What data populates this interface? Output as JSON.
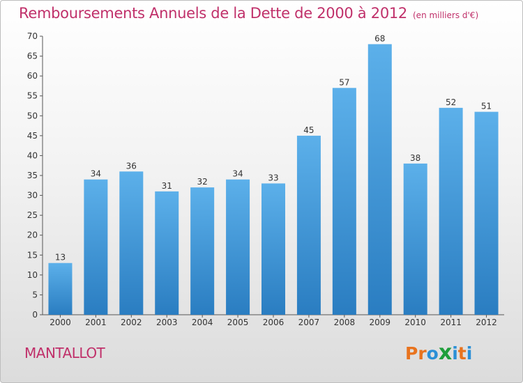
{
  "header": {
    "title": "Remboursements Annuels de la Dette de 2000 à 2012",
    "units": "(en milliers d'€)"
  },
  "footer": {
    "commune": "MANTALLOT",
    "logo_text": "Proxiti"
  },
  "colors": {
    "title": "#c0306a",
    "bar_top": "#5cb0ea",
    "bar_bottom": "#2a7dc1",
    "logo_letters": [
      "#e8731e",
      "#e8731e",
      "#2a8fd6",
      "#1e9e3a",
      "#2a8fd6",
      "#e8731e",
      "#2a8fd6"
    ]
  },
  "chart_data": {
    "type": "bar",
    "title": "Remboursements Annuels de la Dette de 2000 à 2012",
    "subtitle": "(en milliers d'€)",
    "categories": [
      "2000",
      "2001",
      "2002",
      "2003",
      "2004",
      "2005",
      "2006",
      "2007",
      "2008",
      "2009",
      "2010",
      "2011",
      "2012"
    ],
    "values": [
      13,
      34,
      36,
      31,
      32,
      34,
      33,
      45,
      57,
      68,
      38,
      52,
      51
    ],
    "ylim": [
      0,
      70
    ],
    "yticks": [
      0,
      5,
      10,
      15,
      20,
      25,
      30,
      35,
      40,
      45,
      50,
      55,
      60,
      65,
      70
    ],
    "grid": false,
    "data_labels": true
  }
}
